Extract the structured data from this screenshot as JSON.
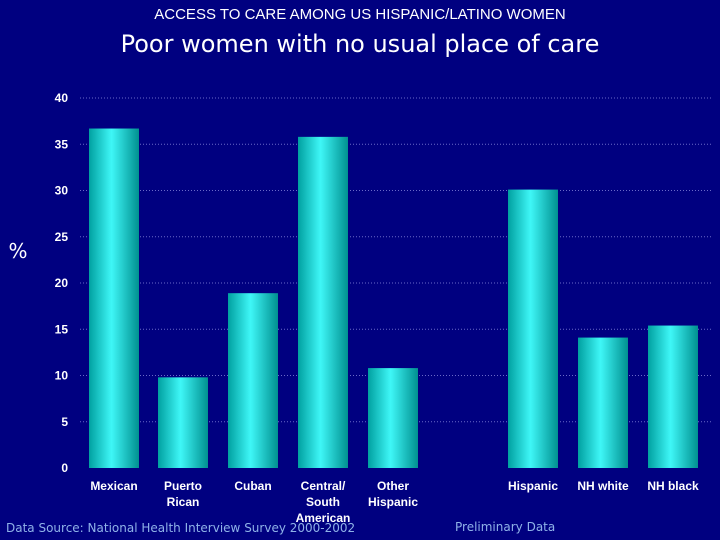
{
  "header": {
    "supertitle": "ACCESS TO CARE AMONG US HISPANIC/LATINO WOMEN",
    "title": "Poor women with no usual place of care"
  },
  "footer": {
    "source": "Data Source:  National Health Interview Survey 2000-2002",
    "note": "Preliminary Data"
  },
  "colors": {
    "background": "#000080",
    "bar_light": "#33f5f5",
    "bar_dark": "#009a9a",
    "text": "#ffffff",
    "grid": "#6a6ac8"
  },
  "chart_data": {
    "type": "bar",
    "title": "Poor women with no usual place of care",
    "xlabel": "",
    "ylabel": "%",
    "ylim": [
      0,
      40
    ],
    "yticks": [
      0,
      5,
      10,
      15,
      20,
      25,
      30,
      35,
      40
    ],
    "grid": true,
    "categories": [
      "Mexican",
      "Puerto Rican",
      "Cuban",
      "Central/ South American",
      "Other Hispanic",
      "Hispanic",
      "NH white",
      "NH black"
    ],
    "category_lines": [
      [
        "Mexican"
      ],
      [
        "Puerto",
        "Rican"
      ],
      [
        "Cuban"
      ],
      [
        "Central/",
        "South",
        "American"
      ],
      [
        "Other",
        "Hispanic"
      ],
      [
        "Hispanic"
      ],
      [
        "NH white"
      ],
      [
        "NH black"
      ]
    ],
    "values": [
      36.7,
      9.8,
      18.9,
      35.8,
      10.8,
      30.1,
      14.1,
      15.4
    ]
  }
}
